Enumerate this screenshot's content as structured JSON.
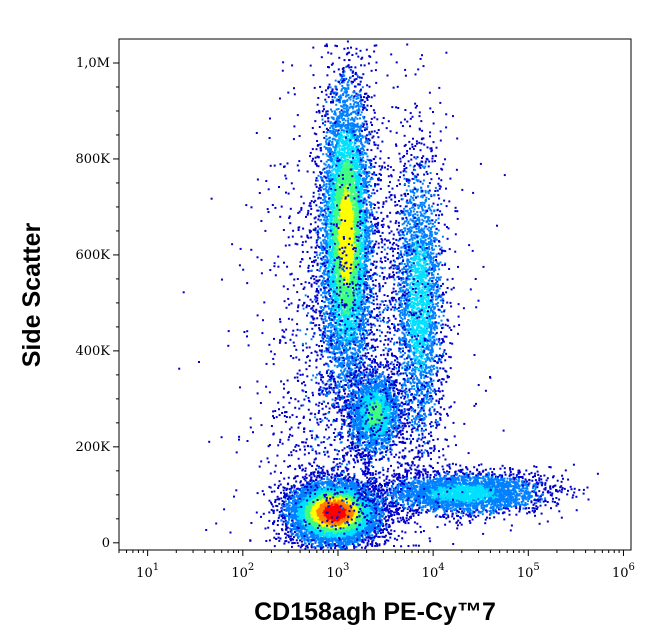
{
  "chart_data": {
    "type": "scatter",
    "title": "",
    "xlabel": "CD158agh PE-Cy™7",
    "ylabel": "Side Scatter",
    "x_scale": "log",
    "xlim": [
      5,
      1200000
    ],
    "ylim": [
      -15000,
      1050000
    ],
    "x_ticks": [
      {
        "value": 10,
        "base": "10",
        "exp": "1"
      },
      {
        "value": 100,
        "base": "10",
        "exp": "2"
      },
      {
        "value": 1000,
        "base": "10",
        "exp": "3"
      },
      {
        "value": 10000,
        "base": "10",
        "exp": "4"
      },
      {
        "value": 100000,
        "base": "10",
        "exp": "5"
      },
      {
        "value": 1000000,
        "base": "10",
        "exp": "6"
      }
    ],
    "y_ticks": [
      {
        "value": 0,
        "label": "0"
      },
      {
        "value": 200000,
        "label": "200K"
      },
      {
        "value": 400000,
        "label": "400K"
      },
      {
        "value": 600000,
        "label": "600K"
      },
      {
        "value": 800000,
        "label": "800K"
      },
      {
        "value": 1000000,
        "label": "1,0M"
      }
    ],
    "populations": [
      {
        "x": 900,
        "y": 65000,
        "sdx": 0.22,
        "sdy": 30000,
        "n": 9000,
        "peak": 1.0
      },
      {
        "x": 1200,
        "y": 640000,
        "sdx": 0.13,
        "sdy": 150000,
        "n": 7000,
        "peak": 0.65
      },
      {
        "x": 2400,
        "y": 270000,
        "sdx": 0.13,
        "sdy": 40000,
        "n": 2200,
        "peak": 0.45
      },
      {
        "x": 7000,
        "y": 500000,
        "sdx": 0.13,
        "sdy": 150000,
        "n": 2600,
        "peak": 0.3
      },
      {
        "x": 20000,
        "y": 105000,
        "sdx": 0.45,
        "sdy": 22000,
        "n": 3200,
        "peak": 0.28
      },
      {
        "x": 1500,
        "y": 350000,
        "sdx": 0.5,
        "sdy": 280000,
        "n": 2600,
        "peak": 0.05
      }
    ],
    "colormap": [
      "#0000cd",
      "#0080ff",
      "#00e0ff",
      "#40ff80",
      "#ffff00",
      "#ff8000",
      "#ff0000"
    ],
    "grid": false,
    "legend": "none"
  }
}
